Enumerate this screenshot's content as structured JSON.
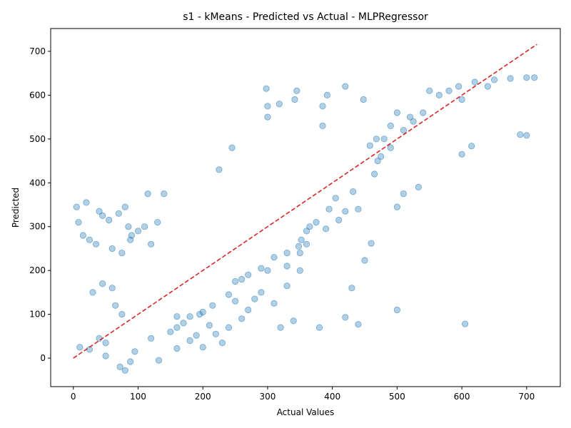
{
  "chart_data": {
    "type": "scatter",
    "title": "s1 - kMeans - Predicted vs Actual - MLPRegressor",
    "xlabel": "Actual Values",
    "ylabel": "Predicted",
    "xlim": [
      -35,
      752
    ],
    "ylim": [
      -65,
      752
    ],
    "xticks": [
      "0",
      "100",
      "200",
      "300",
      "400",
      "500",
      "600",
      "700"
    ],
    "yticks": [
      "0",
      "100",
      "200",
      "300",
      "400",
      "500",
      "600",
      "700"
    ],
    "grid": false,
    "legend": "none",
    "point_color": "#1f77b4",
    "reference_line_color": "#d62728",
    "reference_line": {
      "x": [
        0,
        716
      ],
      "y": [
        0,
        716
      ]
    },
    "series": [
      {
        "x": [
          5,
          8,
          20,
          40,
          45,
          55,
          70,
          80,
          85,
          90,
          100,
          115,
          130,
          140,
          15,
          25,
          35,
          60,
          75,
          88,
          110,
          120,
          72,
          80,
          88,
          132,
          160,
          190,
          210,
          230,
          240,
          260,
          270,
          280,
          290,
          300,
          310,
          320,
          330,
          340,
          350,
          360,
          380,
          390,
          410,
          420,
          430,
          440,
          450,
          460,
          470,
          480,
          490,
          500,
          520,
          550,
          600,
          640,
          690,
          700,
          298,
          300,
          345,
          385,
          392,
          420,
          448,
          458,
          468,
          500,
          510,
          533,
          600,
          615,
          225,
          245,
          300,
          318,
          342,
          385,
          420,
          440,
          500,
          605,
          120,
          150,
          180,
          200,
          220,
          160,
          195,
          250,
          260,
          330,
          350,
          360,
          30,
          45,
          60,
          65,
          75,
          50,
          40,
          10,
          25,
          50,
          95,
          160,
          170,
          180,
          200,
          215,
          240,
          250,
          270,
          290,
          310,
          330,
          348,
          352,
          365,
          375,
          395,
          405,
          432,
          465,
          475,
          490,
          510,
          525,
          540,
          565,
          580,
          595,
          620,
          650,
          675,
          700,
          712
        ],
        "y": [
          345,
          310,
          355,
          335,
          325,
          315,
          330,
          345,
          300,
          280,
          290,
          375,
          310,
          375,
          280,
          270,
          260,
          250,
          240,
          270,
          300,
          260,
          -20,
          -28,
          -8,
          -5,
          22,
          52,
          75,
          35,
          70,
          90,
          110,
          135,
          150,
          200,
          125,
          70,
          165,
          85,
          200,
          290,
          70,
          295,
          315,
          93,
          160,
          77,
          223,
          262,
          450,
          500,
          530,
          560,
          550,
          610,
          590,
          620,
          510,
          508,
          615,
          575,
          610,
          575,
          600,
          620,
          590,
          485,
          500,
          345,
          375,
          390,
          465,
          484,
          430,
          480,
          550,
          580,
          590,
          530,
          335,
          340,
          110,
          78,
          45,
          60,
          40,
          25,
          55,
          95,
          100,
          130,
          180,
          210,
          240,
          260,
          150,
          170,
          160,
          120,
          100,
          35,
          45,
          25,
          20,
          5,
          15,
          70,
          80,
          95,
          105,
          120,
          145,
          175,
          190,
          205,
          230,
          240,
          255,
          270,
          300,
          310,
          340,
          365,
          380,
          420,
          460,
          480,
          520,
          540,
          560,
          600,
          610,
          620,
          630,
          635,
          638,
          640,
          640
        ]
      }
    ]
  }
}
